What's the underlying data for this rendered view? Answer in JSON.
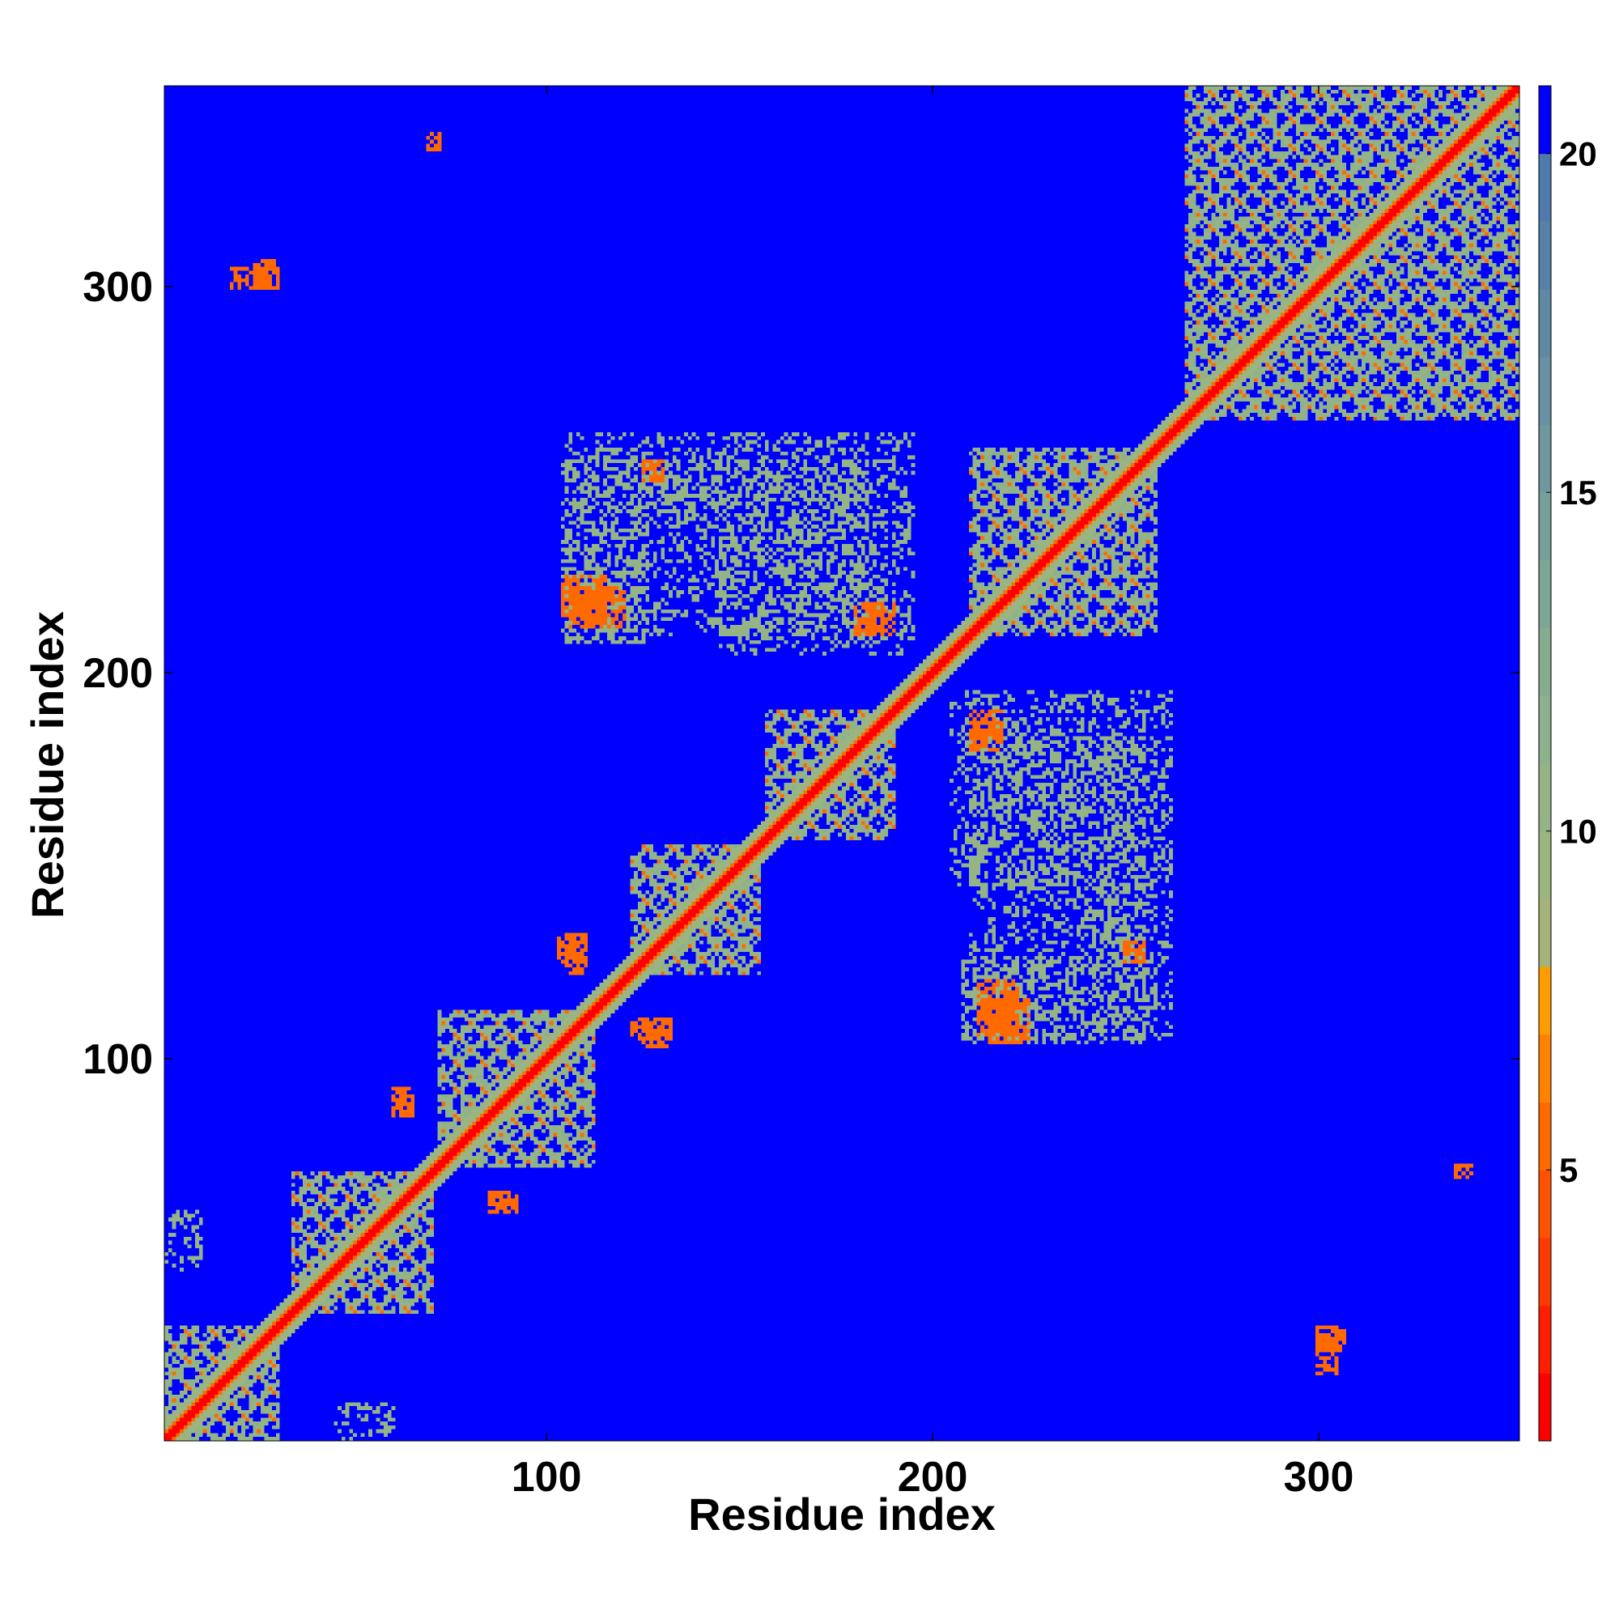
{
  "chart_data": {
    "type": "heatmap",
    "title": "",
    "xlabel": "Residue index",
    "ylabel": "Residue index",
    "xlim": [
      1,
      352
    ],
    "ylim": [
      1,
      352
    ],
    "x_ticks": [
      100,
      200,
      300
    ],
    "y_ticks": [
      100,
      200,
      300
    ],
    "colorbar": {
      "ticks": [
        5,
        10,
        15,
        20
      ],
      "range": [
        1,
        21
      ],
      "levels": [
        {
          "max": 2,
          "color": "#ff0000"
        },
        {
          "max": 3,
          "color": "#ff1f00"
        },
        {
          "max": 4,
          "color": "#ff3a00"
        },
        {
          "max": 5,
          "color": "#ff5200"
        },
        {
          "max": 6,
          "color": "#ff6a00"
        },
        {
          "max": 7,
          "color": "#ff8200"
        },
        {
          "max": 8,
          "color": "#ff9d00"
        },
        {
          "max": 9,
          "color": "#a5b27a"
        },
        {
          "max": 10,
          "color": "#9bb580"
        },
        {
          "max": 11,
          "color": "#94b486"
        },
        {
          "max": 12,
          "color": "#8cb18c"
        },
        {
          "max": 13,
          "color": "#86ac90"
        },
        {
          "max": 14,
          "color": "#7ea694"
        },
        {
          "max": 15,
          "color": "#779f98"
        },
        {
          "max": 16,
          "color": "#70989c"
        },
        {
          "max": 17,
          "color": "#6890a0"
        },
        {
          "max": 18,
          "color": "#6089a4"
        },
        {
          "max": 19,
          "color": "#5881a8"
        },
        {
          "max": 20,
          "color": "#4f7aac"
        },
        {
          "max": 21,
          "color": "#0000ff"
        }
      ]
    },
    "background_value": 21,
    "grid": false,
    "legend": "colorbar right",
    "symmetric": true,
    "diagonal": {
      "from": 1,
      "to": 352,
      "value": 3.5,
      "width": 2
    },
    "helix_blocks": [
      [
        1,
        30
      ],
      [
        34,
        70
      ],
      [
        72,
        112
      ],
      [
        122,
        155
      ],
      [
        157,
        190
      ],
      [
        210,
        258
      ],
      [
        266,
        352
      ]
    ],
    "cross_contacts": [
      {
        "x": [
          18,
          28
        ],
        "y": [
          300,
          305
        ],
        "value": 6
      },
      {
        "x": [
          70,
          72
        ],
        "y": [
          336,
          340
        ],
        "value": 6
      },
      {
        "x": [
          105,
          125
        ],
        "y": [
          208,
          262
        ],
        "value": 11
      },
      {
        "x": [
          125,
          145
        ],
        "y": [
          240,
          262
        ],
        "value": 11
      },
      {
        "x": [
          145,
          195
        ],
        "y": [
          205,
          262
        ],
        "value": 11
      },
      {
        "x": [
          106,
          120
        ],
        "y": [
          212,
          222
        ],
        "value": 6
      },
      {
        "x": [
          180,
          185
        ],
        "y": [
          210,
          218
        ],
        "value": 6
      },
      {
        "x": [
          105,
          110
        ],
        "y": [
          122,
          130
        ],
        "value": 6
      },
      {
        "x": [
          125,
          132
        ],
        "y": [
          103,
          110
        ],
        "value": 6
      },
      {
        "x": [
          210,
          255
        ],
        "y": [
          104,
          185
        ],
        "value": 11
      },
      {
        "x": [
          215,
          225
        ],
        "y": [
          104,
          115
        ],
        "value": 6
      },
      {
        "x": [
          250,
          255
        ],
        "y": [
          125,
          130
        ],
        "value": 6
      },
      {
        "x": [
          210,
          218
        ],
        "y": [
          183,
          190
        ],
        "value": 6
      },
      {
        "x": [
          300,
          307
        ],
        "y": [
          24,
          30
        ],
        "value": 6
      },
      {
        "x": [
          336,
          340
        ],
        "y": [
          69,
          72
        ],
        "value": 6
      },
      {
        "x": [
          60,
          65
        ],
        "y": [
          88,
          92
        ],
        "value": 6
      },
      {
        "x": [
          85,
          90
        ],
        "y": [
          60,
          65
        ],
        "value": 6
      },
      {
        "x": [
          45,
          60
        ],
        "y": [
          0,
          10
        ],
        "value": 11
      }
    ]
  }
}
